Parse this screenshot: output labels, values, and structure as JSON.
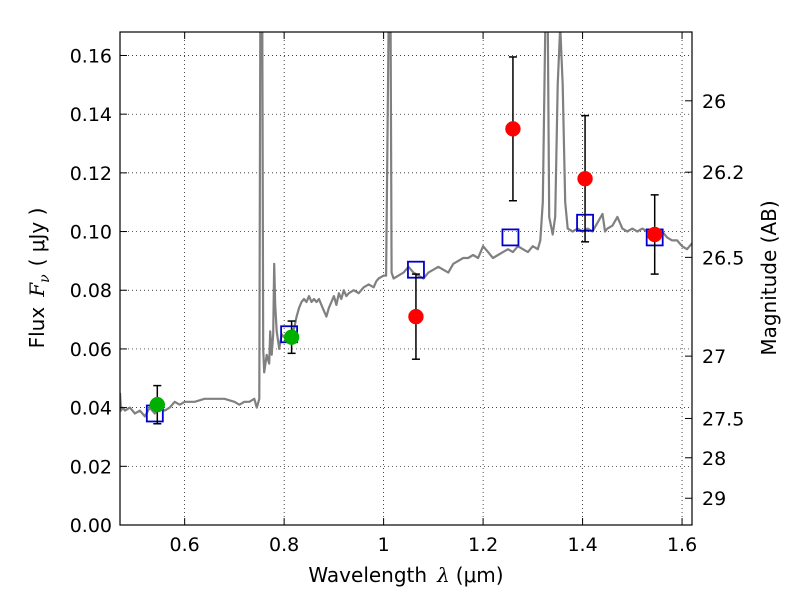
{
  "chart_data": {
    "type": "scatter",
    "xlabel": {
      "prefix": "Wavelength",
      "symbol": "λ",
      "unit": "(μm)"
    },
    "ylabel": {
      "prefix": "Flux",
      "symbol": "F",
      "subscript": "ν",
      "unit": "( μJy )"
    },
    "y2label": "Magnitude (AB)",
    "xlim": [
      0.47,
      1.62
    ],
    "ylim": [
      0.0,
      0.168
    ],
    "grid": true,
    "x_ticks": [
      {
        "value": 0.6,
        "label": "0.6"
      },
      {
        "value": 0.8,
        "label": "0.8"
      },
      {
        "value": 1.0,
        "label": "1"
      },
      {
        "value": 1.2,
        "label": "1.2"
      },
      {
        "value": 1.4,
        "label": "1.4"
      },
      {
        "value": 1.6,
        "label": "1.6"
      }
    ],
    "y_ticks": [
      {
        "value": 0.0,
        "label": "0.00"
      },
      {
        "value": 0.02,
        "label": "0.02"
      },
      {
        "value": 0.04,
        "label": "0.04"
      },
      {
        "value": 0.06,
        "label": "0.06"
      },
      {
        "value": 0.08,
        "label": "0.08"
      },
      {
        "value": 0.1,
        "label": "0.10"
      },
      {
        "value": 0.12,
        "label": "0.12"
      },
      {
        "value": 0.14,
        "label": "0.14"
      },
      {
        "value": 0.16,
        "label": "0.16"
      }
    ],
    "y2_ticks": [
      {
        "label": "26",
        "mag": 26.0
      },
      {
        "label": "26.2",
        "mag": 26.2
      },
      {
        "label": "26.5",
        "mag": 26.5
      },
      {
        "label": "27",
        "mag": 27.0
      },
      {
        "label": "27.5",
        "mag": 27.5
      },
      {
        "label": "28",
        "mag": 28.0
      },
      {
        "label": "29",
        "mag": 29.0
      }
    ],
    "series": [
      {
        "name": "model-spectrum",
        "kind": "line",
        "color": "#808080",
        "points": [
          [
            0.47,
            0.045
          ],
          [
            0.472,
            0.039
          ],
          [
            0.475,
            0.04
          ],
          [
            0.48,
            0.039
          ],
          [
            0.49,
            0.04
          ],
          [
            0.5,
            0.038
          ],
          [
            0.51,
            0.039
          ],
          [
            0.52,
            0.037
          ],
          [
            0.53,
            0.04
          ],
          [
            0.54,
            0.038
          ],
          [
            0.55,
            0.04
          ],
          [
            0.56,
            0.039
          ],
          [
            0.57,
            0.04
          ],
          [
            0.58,
            0.042
          ],
          [
            0.59,
            0.041
          ],
          [
            0.6,
            0.042
          ],
          [
            0.62,
            0.042
          ],
          [
            0.64,
            0.043
          ],
          [
            0.66,
            0.043
          ],
          [
            0.68,
            0.043
          ],
          [
            0.7,
            0.042
          ],
          [
            0.71,
            0.041
          ],
          [
            0.72,
            0.042
          ],
          [
            0.73,
            0.042
          ],
          [
            0.74,
            0.043
          ],
          [
            0.745,
            0.04
          ],
          [
            0.75,
            0.043
          ],
          [
            0.752,
            0.17
          ],
          [
            0.756,
            0.17
          ],
          [
            0.758,
            0.06
          ],
          [
            0.76,
            0.052
          ],
          [
            0.765,
            0.058
          ],
          [
            0.77,
            0.055
          ],
          [
            0.772,
            0.066
          ],
          [
            0.775,
            0.058
          ],
          [
            0.778,
            0.065
          ],
          [
            0.78,
            0.089
          ],
          [
            0.782,
            0.075
          ],
          [
            0.785,
            0.066
          ],
          [
            0.79,
            0.06
          ],
          [
            0.795,
            0.065
          ],
          [
            0.8,
            0.064
          ],
          [
            0.805,
            0.064
          ],
          [
            0.81,
            0.065
          ],
          [
            0.815,
            0.066
          ],
          [
            0.82,
            0.067
          ],
          [
            0.825,
            0.071
          ],
          [
            0.83,
            0.074
          ],
          [
            0.835,
            0.076
          ],
          [
            0.84,
            0.077
          ],
          [
            0.845,
            0.076
          ],
          [
            0.85,
            0.078
          ],
          [
            0.855,
            0.076
          ],
          [
            0.86,
            0.077
          ],
          [
            0.865,
            0.076
          ],
          [
            0.87,
            0.077
          ],
          [
            0.875,
            0.075
          ],
          [
            0.88,
            0.073
          ],
          [
            0.885,
            0.071
          ],
          [
            0.89,
            0.074
          ],
          [
            0.895,
            0.076
          ],
          [
            0.9,
            0.078
          ],
          [
            0.905,
            0.075
          ],
          [
            0.91,
            0.079
          ],
          [
            0.915,
            0.077
          ],
          [
            0.92,
            0.08
          ],
          [
            0.925,
            0.078
          ],
          [
            0.93,
            0.079
          ],
          [
            0.94,
            0.08
          ],
          [
            0.95,
            0.079
          ],
          [
            0.96,
            0.081
          ],
          [
            0.97,
            0.082
          ],
          [
            0.98,
            0.081
          ],
          [
            0.985,
            0.083
          ],
          [
            0.99,
            0.084
          ],
          [
            1.0,
            0.085
          ],
          [
            1.005,
            0.085
          ],
          [
            1.01,
            0.17
          ],
          [
            1.014,
            0.17
          ],
          [
            1.016,
            0.086
          ],
          [
            1.02,
            0.084
          ],
          [
            1.03,
            0.085
          ],
          [
            1.04,
            0.086
          ],
          [
            1.05,
            0.088
          ],
          [
            1.06,
            0.086
          ],
          [
            1.07,
            0.085
          ],
          [
            1.08,
            0.084
          ],
          [
            1.09,
            0.086
          ],
          [
            1.1,
            0.087
          ],
          [
            1.11,
            0.088
          ],
          [
            1.12,
            0.087
          ],
          [
            1.13,
            0.086
          ],
          [
            1.14,
            0.089
          ],
          [
            1.15,
            0.09
          ],
          [
            1.16,
            0.091
          ],
          [
            1.17,
            0.091
          ],
          [
            1.18,
            0.092
          ],
          [
            1.19,
            0.091
          ],
          [
            1.2,
            0.095
          ],
          [
            1.21,
            0.093
          ],
          [
            1.22,
            0.091
          ],
          [
            1.23,
            0.092
          ],
          [
            1.24,
            0.093
          ],
          [
            1.25,
            0.094
          ],
          [
            1.26,
            0.093
          ],
          [
            1.27,
            0.095
          ],
          [
            1.28,
            0.094
          ],
          [
            1.29,
            0.093
          ],
          [
            1.3,
            0.095
          ],
          [
            1.31,
            0.094
          ],
          [
            1.315,
            0.097
          ],
          [
            1.32,
            0.11
          ],
          [
            1.325,
            0.17
          ],
          [
            1.33,
            0.17
          ],
          [
            1.333,
            0.105
          ],
          [
            1.34,
            0.099
          ],
          [
            1.345,
            0.105
          ],
          [
            1.35,
            0.15
          ],
          [
            1.355,
            0.17
          ],
          [
            1.36,
            0.15
          ],
          [
            1.365,
            0.11
          ],
          [
            1.37,
            0.101
          ],
          [
            1.38,
            0.1
          ],
          [
            1.39,
            0.101
          ],
          [
            1.4,
            0.1
          ],
          [
            1.41,
            0.101
          ],
          [
            1.42,
            0.1
          ],
          [
            1.43,
            0.103
          ],
          [
            1.44,
            0.106
          ],
          [
            1.445,
            0.1
          ],
          [
            1.45,
            0.101
          ],
          [
            1.46,
            0.102
          ],
          [
            1.47,
            0.105
          ],
          [
            1.48,
            0.101
          ],
          [
            1.49,
            0.1
          ],
          [
            1.5,
            0.101
          ],
          [
            1.51,
            0.1
          ],
          [
            1.52,
            0.101
          ],
          [
            1.53,
            0.1
          ],
          [
            1.54,
            0.099
          ],
          [
            1.55,
            0.099
          ],
          [
            1.56,
            0.1
          ],
          [
            1.57,
            0.098
          ],
          [
            1.58,
            0.097
          ],
          [
            1.59,
            0.097
          ],
          [
            1.6,
            0.095
          ],
          [
            1.61,
            0.094
          ],
          [
            1.62,
            0.096
          ]
        ]
      },
      {
        "name": "model-photometry",
        "kind": "open-square",
        "color": "#0000cc",
        "x": [
          0.54,
          0.81,
          1.065,
          1.255,
          1.405,
          1.545
        ],
        "y": [
          0.038,
          0.065,
          0.087,
          0.098,
          0.103,
          0.098
        ]
      },
      {
        "name": "optical-detections",
        "kind": "filled-circle",
        "color": "#00b000",
        "x": [
          0.545,
          0.815
        ],
        "y": [
          0.041,
          0.064
        ],
        "yerr": [
          0.0065,
          0.0055
        ]
      },
      {
        "name": "nir-detections",
        "kind": "filled-circle",
        "color": "#ff0000",
        "x": [
          1.065,
          1.26,
          1.405,
          1.545
        ],
        "y": [
          0.071,
          0.135,
          0.118,
          0.099
        ],
        "yerr": [
          0.0145,
          0.0245,
          0.0215,
          0.0135
        ]
      }
    ]
  }
}
